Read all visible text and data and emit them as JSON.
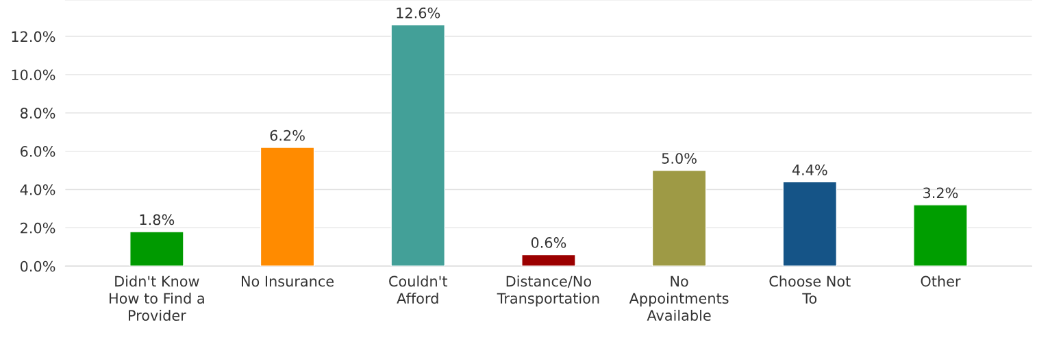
{
  "chart_data": {
    "type": "bar",
    "categories": [
      "Didn't Know\nHow to Find a\nProvider",
      "No Insurance",
      "Couldn't\nAfford",
      "Distance/No\nTransportation",
      "No\nAppointments\nAvailable",
      "Choose Not\nTo",
      "Other"
    ],
    "values": [
      1.8,
      6.2,
      12.6,
      0.6,
      5.0,
      4.4,
      3.2
    ],
    "colors": [
      "#009a00",
      "#ff8b00",
      "#43a098",
      "#9b0000",
      "#9e9a45",
      "#155487",
      "#009e00"
    ],
    "value_labels": [
      "1.8%",
      "6.2%",
      "12.6%",
      "0.6%",
      "5.0%",
      "4.4%",
      "3.2%"
    ],
    "ylim": [
      0,
      13.9
    ],
    "yticks": [
      {
        "value": 0,
        "label": "0.0%"
      },
      {
        "value": 2,
        "label": "2.0%"
      },
      {
        "value": 4,
        "label": "4.0%"
      },
      {
        "value": 6,
        "label": "6.0%"
      },
      {
        "value": 8,
        "label": "8.0%"
      },
      {
        "value": 10,
        "label": "10.0%"
      },
      {
        "value": 12,
        "label": "12.0%"
      }
    ],
    "grid": "y",
    "legend": false
  }
}
